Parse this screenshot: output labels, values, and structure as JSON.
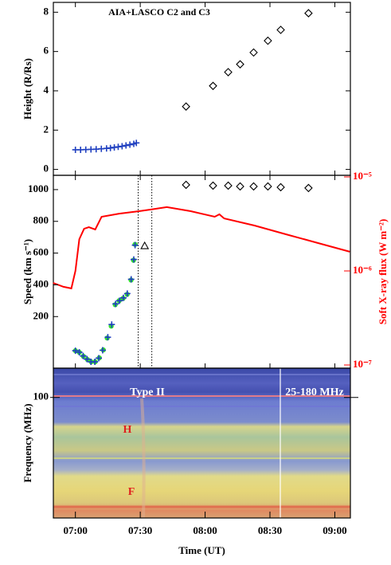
{
  "chart_data": [
    {
      "type": "scatter",
      "ylabel": "Height (R/Rs)",
      "annotation": "AIA+LASCO C2 and C3",
      "xlim": [
        6.83,
        9.12
      ],
      "xticks": [
        7,
        7.5,
        8,
        8.5,
        9
      ],
      "ylim": [
        -0.3,
        8.5
      ],
      "yticks": [
        0,
        2,
        4,
        6,
        8
      ],
      "series": [
        {
          "marker": "plus",
          "color": "#2040c0",
          "x": [
            7.0,
            7.04,
            7.08,
            7.12,
            7.16,
            7.2,
            7.24,
            7.27,
            7.3,
            7.33,
            7.36,
            7.39,
            7.42,
            7.45,
            7.47
          ],
          "values": [
            1.0,
            1.0,
            1.01,
            1.02,
            1.03,
            1.05,
            1.07,
            1.09,
            1.12,
            1.15,
            1.18,
            1.22,
            1.26,
            1.3,
            1.35
          ]
        },
        {
          "marker": "diamond",
          "color": "#000000",
          "x": [
            7.853,
            8.061,
            8.178,
            8.27,
            8.374,
            8.484,
            8.583,
            8.797
          ],
          "values": [
            3.2,
            4.25,
            4.95,
            5.35,
            5.95,
            6.55,
            7.1,
            7.95
          ]
        }
      ]
    },
    {
      "type": "scatter",
      "ylabel": "Speed (km s⁻¹)",
      "y2label": "Soft X-ray flux (W m⁻²)",
      "y2color": "#ff0000",
      "xlim": [
        6.83,
        9.12
      ],
      "xticks": [
        7,
        7.5,
        8,
        8.5,
        9
      ],
      "ylim": [
        -125,
        1090
      ],
      "yticks": [
        200,
        400,
        600,
        800,
        1000
      ],
      "y2log": true,
      "y2lim": [
        9.25e-08,
        1.04e-05
      ],
      "y2ticks": [
        {
          "value": 1e-07,
          "label": "10⁻⁷"
        },
        {
          "value": 1e-06,
          "label": "10⁻⁶"
        },
        {
          "value": 1e-05,
          "label": "10⁻⁵"
        }
      ],
      "vlines": [
        7.484,
        7.589
      ],
      "series": [
        {
          "marker": "line",
          "axis": "y2",
          "color": "#ff0000",
          "x": [
            6.828,
            6.908,
            6.969,
            7.0,
            7.03,
            7.067,
            7.104,
            7.153,
            7.202,
            7.337,
            7.491,
            7.583,
            7.705,
            7.889,
            8.074,
            8.11,
            8.147,
            8.38,
            8.626,
            8.871,
            9.116
          ],
          "values": [
            7.46e-07,
            6.78e-07,
            6.52e-07,
            1e-06,
            2.18e-06,
            2.81e-06,
            2.92e-06,
            2.76e-06,
            3.77e-06,
            4.07e-06,
            4.32e-06,
            4.5e-06,
            4.77e-06,
            4.32e-06,
            3.77e-06,
            4e-06,
            3.62e-06,
            3.04e-06,
            2.45e-06,
            1.98e-06,
            1.6e-06
          ]
        },
        {
          "marker": "circle",
          "color": "#33dd33",
          "x": [
            7.0,
            7.03,
            7.061,
            7.092,
            7.122,
            7.153,
            7.184,
            7.215,
            7.245,
            7.276,
            7.307,
            7.337,
            7.368,
            7.399,
            7.429,
            7.448,
            7.46
          ],
          "values": [
            -15,
            -25,
            -50,
            -70,
            -85,
            -85,
            -60,
            -10,
            65,
            140,
            275,
            300,
            315,
            340,
            430,
            555,
            655
          ]
        },
        {
          "marker": "plus",
          "color": "#2040c0",
          "x": [
            7.0,
            7.03,
            7.06,
            7.09,
            7.12,
            7.15,
            7.18,
            7.21,
            7.25,
            7.28,
            7.31,
            7.34,
            7.37,
            7.4,
            7.43,
            7.45,
            7.46
          ],
          "values": [
            -15,
            -25,
            -48,
            -68,
            -85,
            -85,
            -62,
            -12,
            70,
            150,
            280,
            300,
            318,
            345,
            435,
            560,
            650
          ]
        },
        {
          "marker": "triangle",
          "color": "#000000",
          "x": [
            7.534
          ],
          "values": [
            643
          ]
        },
        {
          "marker": "diamond",
          "color": "#000000",
          "x": [
            7.853,
            8.061,
            8.178,
            8.27,
            8.374,
            8.484,
            8.583,
            8.797
          ],
          "values": [
            1030,
            1025,
            1025,
            1020,
            1020,
            1020,
            1015,
            1010
          ]
        }
      ]
    },
    {
      "type": "spectrogram",
      "ylabel": "Frequency (MHz)",
      "xlabel": "Time (UT)",
      "xlim": [
        6.83,
        9.12
      ],
      "xticks": [
        {
          "value": 7,
          "label": "07:00"
        },
        {
          "value": 7.5,
          "label": "07:30"
        },
        {
          "value": 8,
          "label": "08:00"
        },
        {
          "value": 8.5,
          "label": "08:30"
        },
        {
          "value": 9,
          "label": "09:00"
        }
      ],
      "ylog": true,
      "ylim": [
        25,
        140
      ],
      "yticks": [
        100
      ],
      "labels": [
        "Type II",
        "25-180 MHz",
        "H",
        "F"
      ]
    }
  ]
}
